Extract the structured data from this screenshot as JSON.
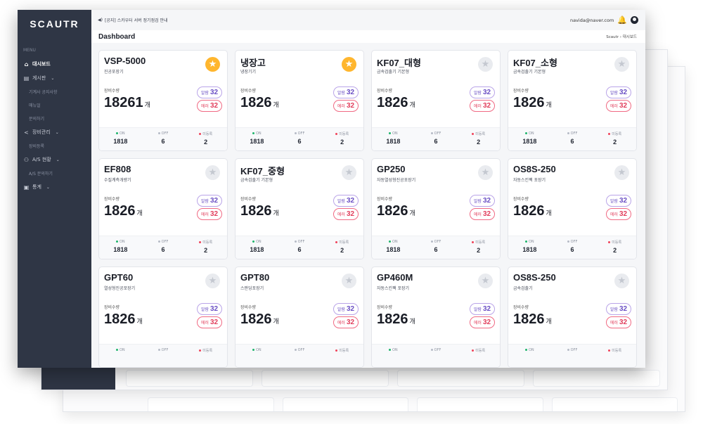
{
  "app": {
    "logo": "SCAUTR"
  },
  "sidebar": {
    "menu_heading": "MENU",
    "items": [
      {
        "label": "대시보드",
        "icon": "home-icon",
        "active": true
      },
      {
        "label": "게시판",
        "icon": "board-icon",
        "chevron": "⌄"
      },
      {
        "label": "기계사 공지사항",
        "sub": true
      },
      {
        "label": "매뉴얼",
        "sub": true
      },
      {
        "label": "문의하기",
        "sub": true
      },
      {
        "label": "장비관리",
        "icon": "share-icon",
        "chevron": "⌄"
      },
      {
        "label": "장비등록",
        "sub": true
      },
      {
        "label": "A/S 현황",
        "icon": "people-icon",
        "chevron": "⌄"
      },
      {
        "label": "A/S 문의하기",
        "sub": true
      },
      {
        "label": "통계",
        "icon": "chart-icon",
        "chevron": "⌄"
      }
    ]
  },
  "topbar": {
    "notice": "[공지] 스카우터 서버 정기점검 안내",
    "notice_icon": "megaphone-icon",
    "email": "navida@naver.com",
    "bell_icon": "bell-icon",
    "avatar_icon": "user-icon"
  },
  "page": {
    "title": "Dashboard",
    "breadcrumb": "Scautr  ›  대시보드"
  },
  "labels": {
    "count_label": "장비수량",
    "unit": "개",
    "alarm": "알람",
    "error": "에러",
    "on": "ON",
    "off": "OFF",
    "unreg": "미등록"
  },
  "colors": {
    "sidebar_bg": "#2f3645",
    "favorite_star": "#ffb62e",
    "alarm": "#6a4fc4",
    "error": "#e13e5c",
    "on_dot": "#1fb46b",
    "unreg_dot": "#f0435a"
  },
  "cards": [
    {
      "name": "VSP-5000",
      "sub": "진공포장기",
      "fav": true,
      "count": "18261",
      "alarm": "32",
      "error": "32",
      "on": "1818",
      "off": "6",
      "unreg": "2"
    },
    {
      "name": "냉장고",
      "sub": "냉장기기",
      "fav": true,
      "count": "1826",
      "alarm": "32",
      "error": "32",
      "on": "1818",
      "off": "6",
      "unreg": "2"
    },
    {
      "name": "KF07_대형",
      "sub": "금속검출기 기본형",
      "fav": false,
      "count": "1826",
      "alarm": "32",
      "error": "32",
      "on": "1818",
      "off": "6",
      "unreg": "2"
    },
    {
      "name": "KF07_소형",
      "sub": "금속검출기 기본형",
      "fav": false,
      "count": "1826",
      "alarm": "32",
      "error": "32",
      "on": "1818",
      "off": "6",
      "unreg": "2"
    },
    {
      "name": "EF808",
      "sub": "수질계측개량기",
      "fav": false,
      "count": "1826",
      "alarm": "32",
      "error": "32",
      "on": "1818",
      "off": "6",
      "unreg": "2"
    },
    {
      "name": "KF07_중형",
      "sub": "금속검출기 기본형",
      "fav": false,
      "count": "1826",
      "alarm": "32",
      "error": "32",
      "on": "1818",
      "off": "6",
      "unreg": "2"
    },
    {
      "name": "GP250",
      "sub": "자동열성형진공포장기",
      "fav": false,
      "count": "1826",
      "alarm": "32",
      "error": "32",
      "on": "1818",
      "off": "6",
      "unreg": "2"
    },
    {
      "name": "OS8S-250",
      "sub": "자동스킨팩 포장기",
      "fav": false,
      "count": "1826",
      "alarm": "32",
      "error": "32",
      "on": "1818",
      "off": "6",
      "unreg": "2"
    },
    {
      "name": "GPT60",
      "sub": "열성형진공포장기",
      "fav": false,
      "count": "1826",
      "alarm": "32",
      "error": "32",
      "on": "",
      "off": "",
      "unreg": ""
    },
    {
      "name": "GPT80",
      "sub": "스판딩포장기",
      "fav": false,
      "count": "1826",
      "alarm": "32",
      "error": "32",
      "on": "",
      "off": "",
      "unreg": ""
    },
    {
      "name": "GP460M",
      "sub": "자동스킨팩 포장기",
      "fav": false,
      "count": "1826",
      "alarm": "32",
      "error": "32",
      "on": "",
      "off": "",
      "unreg": ""
    },
    {
      "name": "OS8S-250",
      "sub": "금속검출기",
      "fav": false,
      "count": "1826",
      "alarm": "32",
      "error": "32",
      "on": "",
      "off": "",
      "unreg": ""
    }
  ]
}
